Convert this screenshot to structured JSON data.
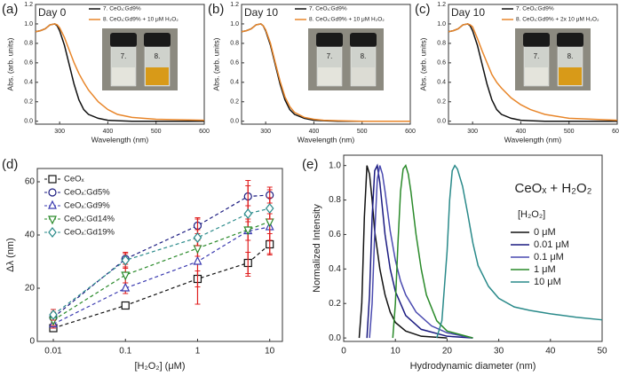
{
  "chart_data": [
    {
      "type": "line",
      "panel_label": "(a)",
      "title": "Day 0",
      "x_label": "Wavelength (nm)",
      "y_label": "Abs. (arb. units)",
      "x": [
        250,
        260,
        270,
        280,
        290,
        295,
        300,
        310,
        320,
        330,
        340,
        350,
        360,
        380,
        400,
        420,
        450,
        500,
        600
      ],
      "series": [
        {
          "name": "7. CeOₓ:Gd9%",
          "color": "#111111",
          "values": [
            0.92,
            0.93,
            0.95,
            0.99,
            1.0,
            0.98,
            0.93,
            0.78,
            0.58,
            0.38,
            0.22,
            0.12,
            0.07,
            0.03,
            0.01,
            0.005,
            0.0,
            0.0,
            0.0
          ]
        },
        {
          "name": "8. CeOₓ:Gd9% + 10 μM H₂O₂",
          "color": "#e8862a",
          "values": [
            0.92,
            0.93,
            0.95,
            0.99,
            1.0,
            0.99,
            0.96,
            0.86,
            0.73,
            0.6,
            0.49,
            0.4,
            0.32,
            0.2,
            0.12,
            0.07,
            0.04,
            0.02,
            0.01
          ]
        }
      ],
      "xlim": [
        250,
        600
      ],
      "xticks": [
        300,
        400,
        500,
        600
      ],
      "ylim": [
        -0.03,
        1.2
      ],
      "yticks": [
        {
          "value": 0,
          "label": "0.0"
        },
        0.2,
        0.4,
        0.6,
        0.8,
        {
          "value": 1,
          "label": "1.0"
        },
        1.2
      ],
      "inset_labels": [
        "7.",
        "8."
      ],
      "inset_colors": [
        "#e4e4dc",
        "#d89a18"
      ]
    },
    {
      "type": "line",
      "panel_label": "(b)",
      "title": "Day 10",
      "x_label": "Wavelength (nm)",
      "y_label": "Abs. (arb. units)",
      "x": [
        250,
        260,
        270,
        280,
        290,
        295,
        300,
        310,
        320,
        330,
        340,
        350,
        360,
        380,
        400,
        420,
        450,
        500,
        600
      ],
      "series": [
        {
          "name": "7. CeOₓ:Gd9%",
          "color": "#111111",
          "values": [
            0.92,
            0.93,
            0.95,
            0.99,
            1.0,
            0.98,
            0.93,
            0.78,
            0.58,
            0.38,
            0.22,
            0.12,
            0.07,
            0.03,
            0.01,
            0.005,
            0.0,
            0.0,
            0.0
          ]
        },
        {
          "name": "8. CeOₓ:Gd9% + 10 μM H₂O₂",
          "color": "#e8862a",
          "values": [
            0.92,
            0.93,
            0.95,
            0.99,
            1.0,
            0.98,
            0.94,
            0.8,
            0.6,
            0.41,
            0.25,
            0.15,
            0.09,
            0.04,
            0.02,
            0.01,
            0.005,
            0.0,
            0.0
          ]
        }
      ],
      "xlim": [
        250,
        600
      ],
      "xticks": [
        300,
        400,
        500,
        600
      ],
      "ylim": [
        -0.03,
        1.2
      ],
      "yticks": [
        {
          "value": 0,
          "label": "0.0"
        },
        0.2,
        0.4,
        0.6,
        0.8,
        {
          "value": 1,
          "label": "1.0"
        },
        1.2
      ],
      "inset_labels": [
        "7.",
        "8."
      ],
      "inset_colors": [
        "#e4e4dc",
        "#dcdcd4"
      ]
    },
    {
      "type": "line",
      "panel_label": "(c)",
      "title": "Day 10",
      "x_label": "Wavelength (nm)",
      "y_label": "Abs. (arb. units)",
      "x": [
        250,
        260,
        270,
        280,
        290,
        295,
        300,
        310,
        320,
        330,
        340,
        350,
        360,
        380,
        400,
        420,
        450,
        500,
        600
      ],
      "series": [
        {
          "name": "7. CeOₓ:Gd9%",
          "color": "#111111",
          "values": [
            0.92,
            0.93,
            0.95,
            0.99,
            1.0,
            0.98,
            0.93,
            0.78,
            0.58,
            0.38,
            0.22,
            0.12,
            0.07,
            0.03,
            0.01,
            0.005,
            0.0,
            0.0,
            0.0
          ]
        },
        {
          "name": "8. CeOₓ:Gd9% + 2x 10 μM H₂O₂",
          "color": "#e8862a",
          "values": [
            0.92,
            0.93,
            0.95,
            0.99,
            1.0,
            0.99,
            0.97,
            0.85,
            0.72,
            0.6,
            0.48,
            0.4,
            0.34,
            0.24,
            0.17,
            0.12,
            0.07,
            0.03,
            0.01
          ]
        }
      ],
      "xlim": [
        250,
        600
      ],
      "xticks": [
        300,
        400,
        500,
        600
      ],
      "ylim": [
        -0.03,
        1.2
      ],
      "yticks": [
        {
          "value": 0,
          "label": "0.0"
        },
        0.2,
        0.4,
        0.6,
        0.8,
        {
          "value": 1,
          "label": "1.0"
        },
        1.2
      ],
      "inset_labels": [
        "7.",
        "8."
      ],
      "inset_colors": [
        "#e4e4dc",
        "#d89a18"
      ]
    },
    {
      "type": "scatter",
      "panel_label": "(d)",
      "x_label": "[H₂O₂] (μM)",
      "y_label": "Δλ (nm)",
      "x_scale": "log",
      "x": [
        0.01,
        0.1,
        1,
        5,
        10
      ],
      "error_color": "#e02020",
      "series": [
        {
          "name": "CeOₓ",
          "color": "#111111",
          "marker": "square",
          "values": [
            5,
            13.5,
            23.5,
            29.5,
            36.5
          ],
          "errors": [
            1,
            1,
            3,
            4,
            4
          ]
        },
        {
          "name": "CeOₓ:Gd5%",
          "color": "#1a1a80",
          "marker": "circle",
          "values": [
            9,
            31,
            43.5,
            54.5,
            55
          ],
          "errors": [
            2,
            2,
            3,
            6,
            3
          ]
        },
        {
          "name": "CeOₓ:Gd9%",
          "color": "#3a3ab0",
          "marker": "triangle",
          "values": [
            6.5,
            20,
            30,
            41.5,
            43
          ],
          "errors": [
            1.5,
            2,
            16,
            17,
            5
          ]
        },
        {
          "name": "CeOₓ:Gd14%",
          "color": "#2a8a2a",
          "marker": "triangle-down",
          "values": [
            8,
            25,
            35,
            42,
            45
          ],
          "errors": [
            2,
            3,
            3,
            4,
            12
          ]
        },
        {
          "name": "CeOₓ:Gd19%",
          "color": "#2a8a8a",
          "marker": "diamond",
          "values": [
            10,
            30.5,
            39,
            48,
            50
          ],
          "errors": [
            2,
            3,
            3,
            3,
            4
          ]
        }
      ],
      "xlim": [
        0.006,
        15
      ],
      "xticks": [
        0.01,
        0.1,
        1,
        10
      ],
      "ylim": [
        0,
        65
      ],
      "yticks": [
        0,
        20,
        40,
        60
      ]
    },
    {
      "type": "line",
      "panel_label": "(e)",
      "title": "CeOₓ + H₂O₂",
      "legend_title": "[H₂O₂]",
      "x_label": "Hydrodynamic diameter (nm)",
      "y_label": "Normalized Intensity",
      "series": [
        {
          "name": "0 μM",
          "color": "#111111",
          "x": [
            3,
            3.5,
            4,
            4.5,
            5,
            5.5,
            6,
            7,
            8,
            9,
            10,
            12,
            15,
            20
          ],
          "values": [
            0,
            0.2,
            0.7,
            1.0,
            0.95,
            0.8,
            0.62,
            0.4,
            0.25,
            0.15,
            0.09,
            0.04,
            0.01,
            0
          ]
        },
        {
          "name": "0.01 μM",
          "color": "#1a1a80",
          "x": [
            4.5,
            5,
            5.5,
            6,
            6.5,
            7,
            7.5,
            8,
            9,
            10,
            12,
            15,
            20,
            25
          ],
          "values": [
            0,
            0.25,
            0.7,
            0.97,
            1.0,
            0.9,
            0.75,
            0.6,
            0.4,
            0.27,
            0.13,
            0.05,
            0.01,
            0
          ]
        },
        {
          "name": "0.1 μM",
          "color": "#4a4ab0",
          "x": [
            5,
            5.5,
            6,
            6.5,
            7,
            7.5,
            8,
            9,
            10,
            11,
            12,
            14,
            17,
            20,
            25
          ],
          "values": [
            0,
            0.2,
            0.6,
            0.92,
            1.0,
            0.95,
            0.85,
            0.62,
            0.45,
            0.33,
            0.25,
            0.15,
            0.07,
            0.03,
            0
          ]
        },
        {
          "name": "1 μM",
          "color": "#2a8a2a",
          "x": [
            9.5,
            10,
            10.5,
            11,
            11.5,
            12,
            12.5,
            13,
            14,
            15,
            16,
            18,
            20,
            25
          ],
          "values": [
            0,
            0.2,
            0.55,
            0.85,
            0.98,
            1.0,
            0.95,
            0.85,
            0.6,
            0.4,
            0.25,
            0.1,
            0.04,
            0
          ]
        },
        {
          "name": "10 μM",
          "color": "#2a8a8a",
          "x": [
            18,
            19,
            20,
            20.5,
            21,
            21.5,
            22,
            23,
            24,
            25,
            26,
            28,
            30,
            33,
            36,
            40,
            45,
            50
          ],
          "values": [
            0,
            0.1,
            0.5,
            0.8,
            0.97,
            1.0,
            0.98,
            0.88,
            0.72,
            0.55,
            0.42,
            0.3,
            0.23,
            0.18,
            0.16,
            0.14,
            0.12,
            0.105
          ]
        }
      ],
      "xlim": [
        0,
        50
      ],
      "xticks": [
        0,
        10,
        20,
        30,
        40,
        50
      ],
      "ylim": [
        -0.02,
        1.06
      ],
      "yticks": [
        {
          "value": 0,
          "label": "0.0"
        },
        0.2,
        0.4,
        0.6,
        0.8,
        {
          "value": 1,
          "label": "1.0"
        }
      ]
    }
  ]
}
